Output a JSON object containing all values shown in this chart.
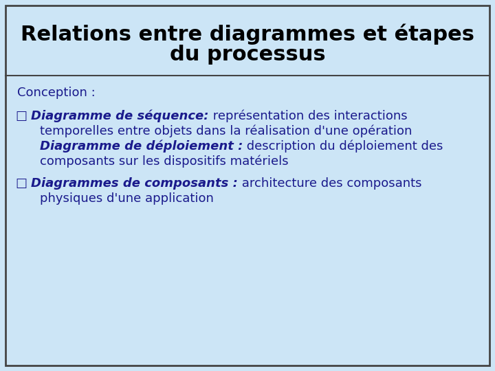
{
  "title_line1": "Relations entre diagrammes et étapes",
  "title_line2": "du processus",
  "background_color": "#cce5f6",
  "border_color": "#444444",
  "title_color": "#000000",
  "section_label": "Conception :",
  "bullet_char": "□",
  "text_color": "#1a1a8c",
  "font_size_title": 22,
  "font_size_body": 13,
  "fig_width": 7.2,
  "fig_height": 5.4,
  "dpi": 100
}
